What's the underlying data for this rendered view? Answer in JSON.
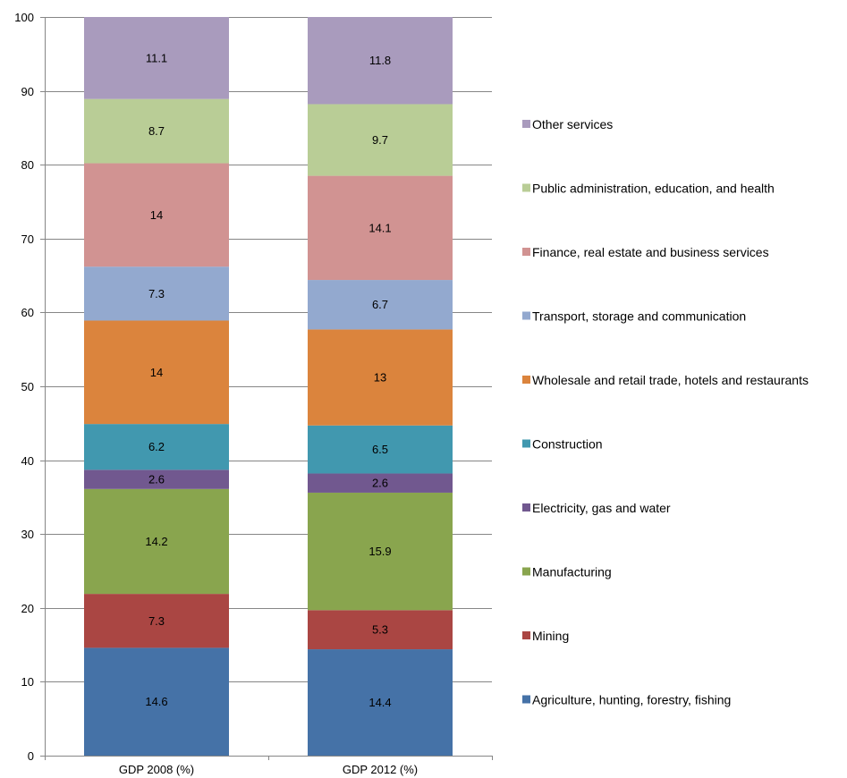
{
  "chart_data": {
    "type": "bar",
    "stacked": true,
    "categories": [
      "GDP 2008 (%)",
      "GDP 2012 (%)"
    ],
    "ylim": [
      0,
      100
    ],
    "yticks": [
      0,
      10,
      20,
      30,
      40,
      50,
      60,
      70,
      80,
      90,
      100
    ],
    "grid": true,
    "legend_position": "right",
    "series": [
      {
        "name": "Agriculture, hunting, forestry, fishing",
        "color": "#4572A7",
        "values": [
          14.6,
          14.4
        ]
      },
      {
        "name": "Mining",
        "color": "#AA4643",
        "values": [
          7.3,
          5.3
        ]
      },
      {
        "name": "Manufacturing",
        "color": "#89A54E",
        "values": [
          14.2,
          15.9
        ]
      },
      {
        "name": "Electricity, gas and water",
        "color": "#71588F",
        "values": [
          2.6,
          2.6
        ]
      },
      {
        "name": "Construction",
        "color": "#4198AF",
        "values": [
          6.2,
          6.5
        ]
      },
      {
        "name": "Wholesale and retail trade, hotels and restaurants",
        "color": "#DB843D",
        "values": [
          14,
          13
        ]
      },
      {
        "name": "Transport, storage and communication",
        "color": "#93A9CF",
        "values": [
          7.3,
          6.7
        ]
      },
      {
        "name": "Finance, real estate and business services",
        "color": "#D19392",
        "values": [
          14,
          14.1
        ]
      },
      {
        "name": "Public administration, education, and health",
        "color": "#B9CD96",
        "values": [
          8.7,
          9.7
        ]
      },
      {
        "name": "Other services",
        "color": "#A99BBD",
        "values": [
          11.1,
          11.8
        ]
      }
    ]
  }
}
